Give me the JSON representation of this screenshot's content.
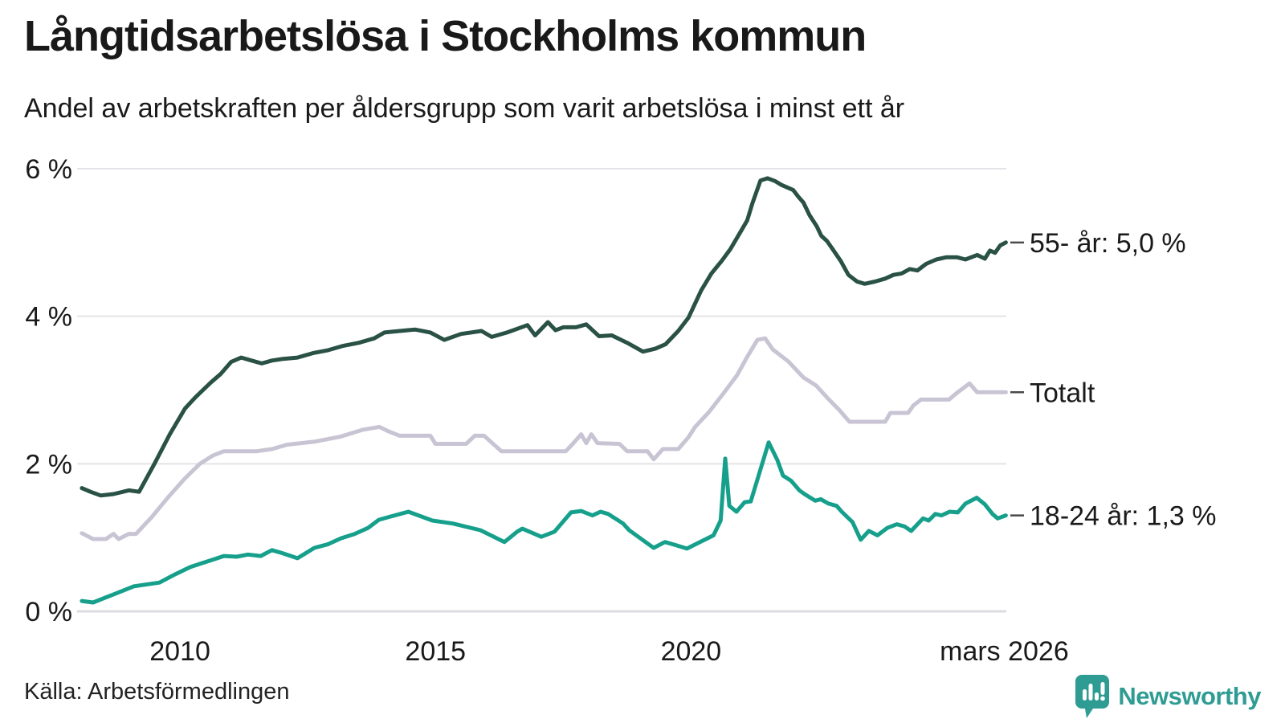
{
  "header": {
    "title": "Långtidsarbetslösa i Stockholms kommun",
    "subtitle": "Andel av arbetskraften per åldersgrupp som varit arbetslösa i minst ett år"
  },
  "colors": {
    "grid_line": "#e4e4e8",
    "axis_line": "#dcdce0",
    "text": "#1a1a1a",
    "label_tick": "#4a4a4a",
    "series_55": "#2a5145",
    "series_total": "#c8c4d4",
    "series_youth": "#16a08c",
    "brand": "#2f9c94"
  },
  "chart_data": {
    "type": "line",
    "title": "Långtidsarbetslösa i Stockholms kommun",
    "subtitle": "Andel av arbetskraften per åldersgrupp som varit arbetslösa i minst ett år",
    "grid": true,
    "legend_position": "right-end-labels",
    "x_domain": [
      2008.05,
      2026.17
    ],
    "y_domain": [
      0,
      6
    ],
    "y_ticks": [
      {
        "value": 0,
        "label": "0 %"
      },
      {
        "value": 2,
        "label": "2 %"
      },
      {
        "value": 4,
        "label": "4 %"
      },
      {
        "value": 6,
        "label": "6 %"
      }
    ],
    "x_ticks": [
      {
        "value": 2010,
        "label": "2010"
      },
      {
        "value": 2015,
        "label": "2015"
      },
      {
        "value": 2020,
        "label": "2020"
      },
      {
        "value": 2026.13,
        "label": "mars 2026"
      }
    ],
    "series": [
      {
        "name": "55- år",
        "label": "55- år: 5,0 %",
        "latest_value": "5,0 %",
        "color": "#2a5145",
        "width": 5,
        "points": [
          [
            2008.08,
            1.67
          ],
          [
            2008.25,
            1.62
          ],
          [
            2008.45,
            1.57
          ],
          [
            2008.7,
            1.59
          ],
          [
            2009.0,
            1.64
          ],
          [
            2009.2,
            1.62
          ],
          [
            2009.5,
            2.0
          ],
          [
            2009.8,
            2.4
          ],
          [
            2010.1,
            2.75
          ],
          [
            2010.3,
            2.9
          ],
          [
            2010.6,
            3.1
          ],
          [
            2010.8,
            3.22
          ],
          [
            2011.0,
            3.38
          ],
          [
            2011.2,
            3.44
          ],
          [
            2011.4,
            3.4
          ],
          [
            2011.6,
            3.36
          ],
          [
            2011.8,
            3.4
          ],
          [
            2012.0,
            3.42
          ],
          [
            2012.3,
            3.44
          ],
          [
            2012.6,
            3.5
          ],
          [
            2012.9,
            3.54
          ],
          [
            2013.2,
            3.6
          ],
          [
            2013.5,
            3.64
          ],
          [
            2013.8,
            3.7
          ],
          [
            2014.0,
            3.78
          ],
          [
            2014.3,
            3.8
          ],
          [
            2014.6,
            3.82
          ],
          [
            2014.9,
            3.78
          ],
          [
            2015.17,
            3.68
          ],
          [
            2015.5,
            3.76
          ],
          [
            2015.9,
            3.8
          ],
          [
            2016.1,
            3.72
          ],
          [
            2016.4,
            3.78
          ],
          [
            2016.8,
            3.88
          ],
          [
            2016.95,
            3.74
          ],
          [
            2017.2,
            3.92
          ],
          [
            2017.35,
            3.81
          ],
          [
            2017.5,
            3.85
          ],
          [
            2017.75,
            3.85
          ],
          [
            2017.95,
            3.89
          ],
          [
            2018.2,
            3.73
          ],
          [
            2018.45,
            3.74
          ],
          [
            2018.75,
            3.64
          ],
          [
            2019.06,
            3.52
          ],
          [
            2019.3,
            3.56
          ],
          [
            2019.5,
            3.62
          ],
          [
            2019.75,
            3.8
          ],
          [
            2019.95,
            3.98
          ],
          [
            2020.2,
            4.35
          ],
          [
            2020.4,
            4.58
          ],
          [
            2020.6,
            4.75
          ],
          [
            2020.77,
            4.91
          ],
          [
            2021.0,
            5.18
          ],
          [
            2021.1,
            5.3
          ],
          [
            2021.2,
            5.53
          ],
          [
            2021.36,
            5.84
          ],
          [
            2021.5,
            5.87
          ],
          [
            2021.65,
            5.83
          ],
          [
            2021.77,
            5.78
          ],
          [
            2022.0,
            5.71
          ],
          [
            2022.1,
            5.62
          ],
          [
            2022.2,
            5.54
          ],
          [
            2022.32,
            5.37
          ],
          [
            2022.46,
            5.22
          ],
          [
            2022.55,
            5.09
          ],
          [
            2022.66,
            5.02
          ],
          [
            2022.77,
            4.91
          ],
          [
            2022.93,
            4.75
          ],
          [
            2023.08,
            4.56
          ],
          [
            2023.25,
            4.47
          ],
          [
            2023.4,
            4.44
          ],
          [
            2023.6,
            4.47
          ],
          [
            2023.8,
            4.51
          ],
          [
            2023.96,
            4.56
          ],
          [
            2024.12,
            4.58
          ],
          [
            2024.28,
            4.64
          ],
          [
            2024.43,
            4.62
          ],
          [
            2024.6,
            4.71
          ],
          [
            2024.8,
            4.77
          ],
          [
            2025.0,
            4.8
          ],
          [
            2025.2,
            4.8
          ],
          [
            2025.37,
            4.77
          ],
          [
            2025.6,
            4.83
          ],
          [
            2025.75,
            4.78
          ],
          [
            2025.85,
            4.89
          ],
          [
            2025.95,
            4.86
          ],
          [
            2026.05,
            4.96
          ],
          [
            2026.16,
            5.0
          ]
        ]
      },
      {
        "name": "Totalt",
        "label": "Totalt",
        "latest_value": null,
        "color": "#c8c4d4",
        "width": 5,
        "points": [
          [
            2008.08,
            1.06
          ],
          [
            2008.3,
            0.98
          ],
          [
            2008.55,
            0.98
          ],
          [
            2008.7,
            1.05
          ],
          [
            2008.8,
            0.98
          ],
          [
            2009.0,
            1.05
          ],
          [
            2009.14,
            1.05
          ],
          [
            2009.45,
            1.28
          ],
          [
            2009.76,
            1.54
          ],
          [
            2010.08,
            1.79
          ],
          [
            2010.39,
            2.0
          ],
          [
            2010.64,
            2.11
          ],
          [
            2010.86,
            2.17
          ],
          [
            2011.5,
            2.17
          ],
          [
            2011.8,
            2.2
          ],
          [
            2012.1,
            2.26
          ],
          [
            2012.63,
            2.3
          ],
          [
            2013.15,
            2.37
          ],
          [
            2013.57,
            2.46
          ],
          [
            2013.9,
            2.5
          ],
          [
            2014.08,
            2.44
          ],
          [
            2014.3,
            2.38
          ],
          [
            2014.9,
            2.38
          ],
          [
            2015.0,
            2.27
          ],
          [
            2015.6,
            2.27
          ],
          [
            2015.77,
            2.38
          ],
          [
            2015.95,
            2.38
          ],
          [
            2016.29,
            2.17
          ],
          [
            2017.55,
            2.17
          ],
          [
            2017.7,
            2.28
          ],
          [
            2017.85,
            2.4
          ],
          [
            2017.95,
            2.28
          ],
          [
            2018.05,
            2.4
          ],
          [
            2018.17,
            2.28
          ],
          [
            2018.6,
            2.27
          ],
          [
            2018.75,
            2.17
          ],
          [
            2019.15,
            2.17
          ],
          [
            2019.27,
            2.06
          ],
          [
            2019.45,
            2.2
          ],
          [
            2019.75,
            2.2
          ],
          [
            2019.95,
            2.36
          ],
          [
            2020.08,
            2.5
          ],
          [
            2020.35,
            2.7
          ],
          [
            2020.63,
            2.95
          ],
          [
            2020.9,
            3.2
          ],
          [
            2021.1,
            3.45
          ],
          [
            2021.3,
            3.68
          ],
          [
            2021.45,
            3.7
          ],
          [
            2021.6,
            3.55
          ],
          [
            2021.9,
            3.39
          ],
          [
            2022.2,
            3.17
          ],
          [
            2022.45,
            3.06
          ],
          [
            2022.7,
            2.87
          ],
          [
            2022.9,
            2.73
          ],
          [
            2023.1,
            2.57
          ],
          [
            2023.8,
            2.57
          ],
          [
            2023.9,
            2.69
          ],
          [
            2024.25,
            2.69
          ],
          [
            2024.35,
            2.79
          ],
          [
            2024.5,
            2.87
          ],
          [
            2025.05,
            2.87
          ],
          [
            2025.2,
            2.96
          ],
          [
            2025.45,
            3.09
          ],
          [
            2025.6,
            2.97
          ],
          [
            2026.16,
            2.97
          ]
        ]
      },
      {
        "name": "18-24 år",
        "label": "18-24 år: 1,3 %",
        "latest_value": "1,3 %",
        "color": "#16a08c",
        "width": 5,
        "points": [
          [
            2008.08,
            0.14
          ],
          [
            2008.3,
            0.12
          ],
          [
            2008.7,
            0.23
          ],
          [
            2009.1,
            0.34
          ],
          [
            2009.6,
            0.39
          ],
          [
            2009.9,
            0.5
          ],
          [
            2010.2,
            0.6
          ],
          [
            2010.64,
            0.7
          ],
          [
            2010.86,
            0.75
          ],
          [
            2011.11,
            0.74
          ],
          [
            2011.33,
            0.77
          ],
          [
            2011.58,
            0.75
          ],
          [
            2011.8,
            0.83
          ],
          [
            2012.0,
            0.79
          ],
          [
            2012.3,
            0.72
          ],
          [
            2012.63,
            0.86
          ],
          [
            2012.9,
            0.91
          ],
          [
            2013.15,
            0.99
          ],
          [
            2013.42,
            1.05
          ],
          [
            2013.68,
            1.13
          ],
          [
            2013.89,
            1.24
          ],
          [
            2014.04,
            1.27
          ],
          [
            2014.47,
            1.35
          ],
          [
            2014.94,
            1.23
          ],
          [
            2015.34,
            1.19
          ],
          [
            2015.88,
            1.1
          ],
          [
            2016.35,
            0.94
          ],
          [
            2016.6,
            1.08
          ],
          [
            2016.7,
            1.12
          ],
          [
            2017.07,
            1.01
          ],
          [
            2017.33,
            1.08
          ],
          [
            2017.65,
            1.34
          ],
          [
            2017.85,
            1.36
          ],
          [
            2018.07,
            1.3
          ],
          [
            2018.23,
            1.35
          ],
          [
            2018.38,
            1.32
          ],
          [
            2018.67,
            1.19
          ],
          [
            2018.79,
            1.1
          ],
          [
            2019.01,
            0.99
          ],
          [
            2019.27,
            0.86
          ],
          [
            2019.49,
            0.94
          ],
          [
            2019.69,
            0.9
          ],
          [
            2019.92,
            0.85
          ],
          [
            2020.44,
            1.03
          ],
          [
            2020.58,
            1.23
          ],
          [
            2020.67,
            2.07
          ],
          [
            2020.75,
            1.43
          ],
          [
            2020.89,
            1.35
          ],
          [
            2021.05,
            1.48
          ],
          [
            2021.17,
            1.49
          ],
          [
            2021.52,
            2.29
          ],
          [
            2021.69,
            2.05
          ],
          [
            2021.8,
            1.84
          ],
          [
            2021.96,
            1.77
          ],
          [
            2022.12,
            1.64
          ],
          [
            2022.22,
            1.59
          ],
          [
            2022.43,
            1.5
          ],
          [
            2022.54,
            1.52
          ],
          [
            2022.69,
            1.46
          ],
          [
            2022.85,
            1.43
          ],
          [
            2022.95,
            1.35
          ],
          [
            2023.16,
            1.21
          ],
          [
            2023.32,
            0.97
          ],
          [
            2023.48,
            1.09
          ],
          [
            2023.65,
            1.03
          ],
          [
            2023.84,
            1.13
          ],
          [
            2024.03,
            1.18
          ],
          [
            2024.18,
            1.15
          ],
          [
            2024.31,
            1.09
          ],
          [
            2024.54,
            1.26
          ],
          [
            2024.65,
            1.23
          ],
          [
            2024.78,
            1.32
          ],
          [
            2024.9,
            1.3
          ],
          [
            2025.06,
            1.35
          ],
          [
            2025.22,
            1.34
          ],
          [
            2025.37,
            1.46
          ],
          [
            2025.59,
            1.54
          ],
          [
            2025.75,
            1.45
          ],
          [
            2025.9,
            1.32
          ],
          [
            2026.0,
            1.26
          ],
          [
            2026.16,
            1.3
          ]
        ]
      }
    ]
  },
  "footer": {
    "source": "Källa: Arbetsförmedlingen",
    "brand": "Newsworthy"
  }
}
